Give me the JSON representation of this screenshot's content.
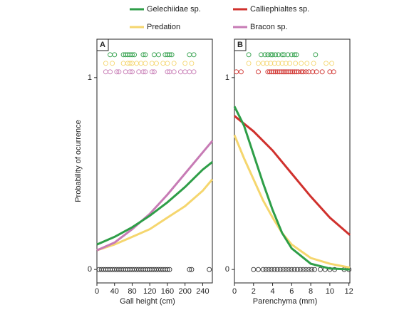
{
  "legend": [
    {
      "name": "Gelechiidae sp.",
      "color": "#2e9e48"
    },
    {
      "name": "Calliephialtes sp.",
      "color": "#d0312d"
    },
    {
      "name": "Predation",
      "color": "#f5d66e"
    },
    {
      "name": "Bracon sp.",
      "color": "#c77bb5"
    }
  ],
  "chart_data": [
    {
      "type": "line",
      "panel": "A",
      "xlabel": "Gall height (cm)",
      "ylabel": "Probability of ocurrence",
      "xlim": [
        0,
        262
      ],
      "ylim": [
        -0.07,
        1.2
      ],
      "xticks": [
        0,
        40,
        80,
        120,
        160,
        200,
        240
      ],
      "yticks": [
        0,
        1
      ],
      "series": [
        {
          "color": "#f5d66e",
          "x": [
            0,
            40,
            80,
            120,
            160,
            200,
            240,
            262
          ],
          "values": [
            0.1,
            0.13,
            0.17,
            0.21,
            0.27,
            0.33,
            0.41,
            0.47
          ]
        },
        {
          "color": "#c77bb5",
          "x": [
            0,
            40,
            80,
            120,
            160,
            200,
            240,
            262
          ],
          "values": [
            0.1,
            0.14,
            0.21,
            0.29,
            0.39,
            0.5,
            0.61,
            0.67
          ]
        },
        {
          "color": "#2e9e48",
          "x": [
            0,
            40,
            80,
            120,
            160,
            200,
            240,
            262
          ],
          "values": [
            0.13,
            0.17,
            0.22,
            0.28,
            0.35,
            0.43,
            0.52,
            0.56
          ]
        }
      ],
      "points": [
        {
          "color": "#2e9e48",
          "y": 1,
          "x": [
            30,
            40,
            60,
            65,
            70,
            75,
            80,
            85,
            105,
            110,
            130,
            140,
            155,
            160,
            165,
            170,
            210,
            220
          ]
        },
        {
          "color": "#f5d66e",
          "y": 1,
          "x": [
            20,
            35,
            60,
            70,
            75,
            80,
            90,
            100,
            110,
            125,
            135,
            150,
            160,
            175,
            200,
            215
          ]
        },
        {
          "color": "#c77bb5",
          "y": 1,
          "x": [
            20,
            30,
            45,
            50,
            65,
            75,
            80,
            95,
            105,
            110,
            125,
            130,
            160,
            165,
            175,
            190,
            200,
            210,
            220
          ]
        },
        {
          "color": "#333333",
          "y": 0,
          "x": [
            5,
            10,
            15,
            20,
            25,
            30,
            35,
            40,
            45,
            50,
            55,
            60,
            65,
            70,
            75,
            80,
            85,
            90,
            95,
            100,
            105,
            110,
            115,
            120,
            125,
            130,
            135,
            140,
            145,
            150,
            155,
            160,
            165,
            210,
            215,
            255
          ]
        }
      ]
    },
    {
      "type": "line",
      "panel": "B",
      "xlabel": "Parenchyma (mm)",
      "xlim": [
        0,
        12.1
      ],
      "ylim": [
        -0.07,
        1.2
      ],
      "xticks": [
        0,
        2,
        4,
        6,
        8,
        10,
        12
      ],
      "yticks": [
        0,
        1
      ],
      "series": [
        {
          "color": "#d0312d",
          "x": [
            0,
            2,
            4,
            6,
            8,
            10,
            12.1
          ],
          "values": [
            0.8,
            0.72,
            0.62,
            0.5,
            0.38,
            0.27,
            0.18
          ]
        },
        {
          "color": "#f5d66e",
          "x": [
            0,
            1,
            2,
            3,
            4,
            5,
            6,
            8,
            10,
            12.1
          ],
          "values": [
            0.7,
            0.58,
            0.47,
            0.36,
            0.27,
            0.19,
            0.13,
            0.06,
            0.03,
            0.01
          ]
        },
        {
          "color": "#2e9e48",
          "x": [
            0,
            1,
            2,
            3,
            4,
            5,
            6,
            8,
            10,
            12.1
          ],
          "values": [
            0.85,
            0.75,
            0.6,
            0.45,
            0.31,
            0.19,
            0.11,
            0.03,
            0.005,
            0.0
          ]
        }
      ],
      "points": [
        {
          "color": "#2e9e48",
          "y": 1,
          "x": [
            1.5,
            2.8,
            3.2,
            3.5,
            3.8,
            4.0,
            4.3,
            4.6,
            5.0,
            5.2,
            5.6,
            6.0,
            6.3,
            6.5,
            8.5
          ]
        },
        {
          "color": "#f5d66e",
          "y": 1,
          "x": [
            1.5,
            2.5,
            3.0,
            3.4,
            3.8,
            4.2,
            4.6,
            5.0,
            5.4,
            5.8,
            6.4,
            7.0,
            7.6,
            8.3,
            9.6,
            10.2
          ]
        },
        {
          "color": "#d0312d",
          "y": 1,
          "x": [
            0.2,
            0.7,
            2.5,
            3.5,
            3.7,
            3.9,
            4.1,
            4.3,
            4.5,
            4.7,
            4.9,
            5.1,
            5.3,
            5.5,
            5.7,
            5.9,
            6.1,
            6.3,
            6.5,
            6.7,
            7.0,
            7.2,
            7.5,
            7.8,
            8.2,
            8.6,
            9.2,
            10.0,
            10.4
          ]
        },
        {
          "color": "#333333",
          "y": 0,
          "x": [
            2.0,
            2.5,
            3.0,
            3.3,
            3.6,
            3.9,
            4.2,
            4.5,
            4.8,
            5.1,
            5.4,
            5.7,
            6.0,
            6.3,
            6.6,
            6.9,
            7.2,
            7.5,
            7.8,
            8.1,
            8.4,
            9.0,
            9.5,
            10.0,
            10.5,
            11.5,
            12.0
          ]
        }
      ]
    }
  ]
}
